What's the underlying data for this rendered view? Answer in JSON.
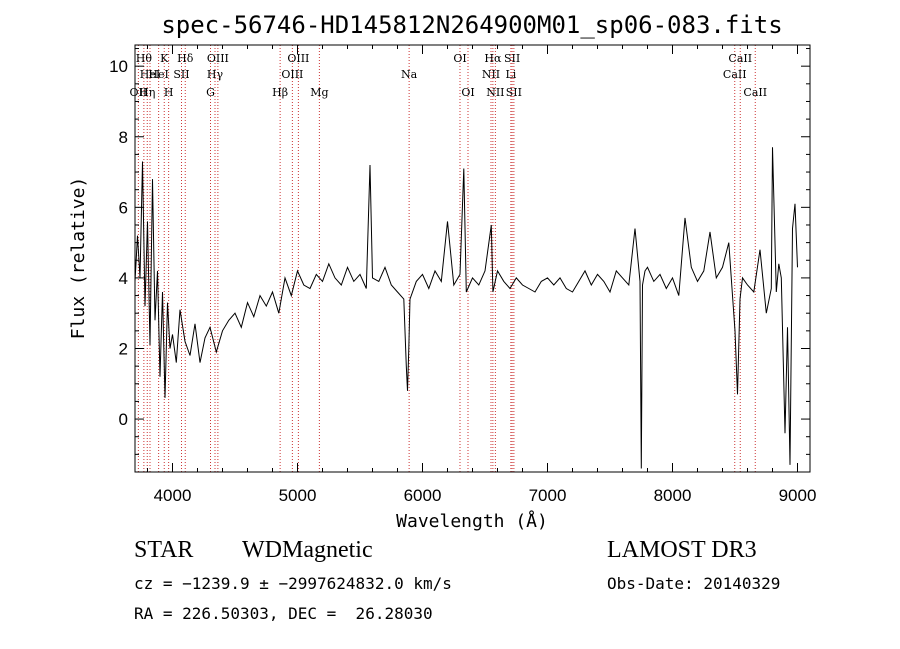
{
  "chart_data": {
    "type": "line",
    "title": "spec-56746-HD145812N264900M01_sp06-083.fits",
    "xlabel": "Wavelength (Å)",
    "ylabel": "Flux (relative)",
    "xlim": [
      3700,
      9100
    ],
    "ylim": [
      -1.5,
      10.6
    ],
    "xticks": [
      4000,
      5000,
      6000,
      7000,
      8000,
      9000
    ],
    "yticks": [
      0,
      2,
      4,
      6,
      8,
      10
    ],
    "line_color": "#000000",
    "marker_color": "#cc3333",
    "series": [
      {
        "x": [
          3700,
          3720,
          3740,
          3760,
          3780,
          3800,
          3820,
          3840,
          3860,
          3880,
          3900,
          3920,
          3940,
          3960,
          3980,
          4000,
          4030,
          4060,
          4100,
          4140,
          4180,
          4220,
          4260,
          4300,
          4350,
          4400,
          4450,
          4500,
          4550,
          4600,
          4650,
          4700,
          4750,
          4800,
          4850,
          4900,
          4950,
          5000,
          5050,
          5100,
          5150,
          5200,
          5250,
          5300,
          5350,
          5400,
          5450,
          5500,
          5550,
          5580,
          5600,
          5650,
          5700,
          5750,
          5800,
          5850,
          5870,
          5880,
          5890,
          5900,
          5950,
          6000,
          6050,
          6100,
          6150,
          6200,
          6250,
          6300,
          6330,
          6350,
          6400,
          6450,
          6500,
          6550,
          6563,
          6600,
          6650,
          6700,
          6750,
          6800,
          6850,
          6900,
          6950,
          7000,
          7050,
          7100,
          7150,
          7200,
          7250,
          7300,
          7350,
          7400,
          7450,
          7500,
          7550,
          7600,
          7650,
          7700,
          7740,
          7750,
          7760,
          7780,
          7800,
          7850,
          7900,
          7950,
          8000,
          8050,
          8100,
          8150,
          8200,
          8250,
          8300,
          8350,
          8400,
          8450,
          8480,
          8500,
          8520,
          8540,
          8560,
          8600,
          8650,
          8700,
          8750,
          8790,
          8800,
          8830,
          8850,
          8870,
          8900,
          8920,
          8940,
          8960,
          8980,
          9000
        ],
        "y": [
          3.9,
          5.2,
          4.0,
          7.3,
          3.2,
          5.6,
          2.1,
          6.8,
          2.8,
          4.2,
          1.2,
          3.6,
          0.6,
          3.3,
          2.0,
          2.4,
          1.6,
          3.1,
          2.2,
          1.8,
          2.7,
          1.6,
          2.3,
          2.6,
          1.9,
          2.5,
          2.8,
          3.0,
          2.6,
          3.3,
          2.9,
          3.5,
          3.2,
          3.6,
          3.0,
          4.0,
          3.5,
          4.2,
          3.8,
          3.7,
          4.1,
          3.9,
          4.4,
          4.0,
          3.8,
          4.3,
          3.9,
          4.1,
          3.7,
          7.2,
          4.0,
          3.9,
          4.3,
          3.8,
          3.6,
          3.4,
          1.5,
          0.8,
          2.0,
          3.4,
          3.9,
          4.1,
          3.7,
          4.2,
          3.9,
          5.6,
          3.8,
          4.1,
          7.1,
          3.6,
          4.0,
          3.8,
          4.2,
          5.5,
          3.6,
          4.2,
          3.9,
          3.7,
          4.0,
          3.8,
          3.7,
          3.6,
          3.9,
          4.0,
          3.8,
          4.0,
          3.7,
          3.6,
          3.9,
          4.2,
          3.8,
          4.1,
          3.9,
          3.6,
          4.2,
          4.0,
          3.8,
          5.4,
          3.9,
          -1.4,
          3.8,
          4.2,
          4.3,
          3.9,
          4.1,
          3.7,
          4.0,
          3.5,
          5.7,
          4.3,
          3.9,
          4.2,
          5.3,
          4.0,
          4.3,
          5.0,
          3.5,
          2.5,
          0.7,
          3.4,
          4.0,
          3.8,
          3.6,
          4.8,
          3.0,
          3.7,
          7.7,
          3.6,
          4.4,
          4.0,
          -0.4,
          2.6,
          -1.3,
          5.4,
          6.1,
          4.3
        ]
      }
    ],
    "lines": [
      {
        "x": 3727,
        "labels": [
          "OII"
        ],
        "rows": [
          3
        ]
      },
      {
        "x": 3771,
        "labels": [
          "Hθ"
        ],
        "rows": [
          1
        ]
      },
      {
        "x": 3798,
        "labels": [
          "Hη"
        ],
        "rows": [
          3
        ]
      },
      {
        "x": 3820,
        "labels": [
          "HeI"
        ],
        "rows": [
          2
        ]
      },
      {
        "x": 3889,
        "labels": [
          "HeI"
        ],
        "rows": [
          2
        ]
      },
      {
        "x": 3934,
        "labels": [
          "K"
        ],
        "rows": [
          1
        ]
      },
      {
        "x": 3969,
        "labels": [
          "H"
        ],
        "rows": [
          3
        ]
      },
      {
        "x": 4072,
        "labels": [
          "SII"
        ],
        "rows": [
          2
        ]
      },
      {
        "x": 4102,
        "labels": [
          "Hδ"
        ],
        "rows": [
          1
        ]
      },
      {
        "x": 4304,
        "labels": [
          "G"
        ],
        "rows": [
          3
        ]
      },
      {
        "x": 4340,
        "labels": [
          "Hγ"
        ],
        "rows": [
          2
        ]
      },
      {
        "x": 4363,
        "labels": [
          "OIII"
        ],
        "rows": [
          1
        ]
      },
      {
        "x": 4861,
        "labels": [
          "Hβ"
        ],
        "rows": [
          3
        ]
      },
      {
        "x": 4959,
        "labels": [
          "OIII"
        ],
        "rows": [
          2
        ]
      },
      {
        "x": 5007,
        "labels": [
          "OIII"
        ],
        "rows": [
          1
        ]
      },
      {
        "x": 5175,
        "labels": [
          "Mg"
        ],
        "rows": [
          3
        ]
      },
      {
        "x": 5893,
        "labels": [
          "Na"
        ],
        "rows": [
          2
        ]
      },
      {
        "x": 6300,
        "labels": [
          "OI"
        ],
        "rows": [
          1
        ]
      },
      {
        "x": 6364,
        "labels": [
          "OI"
        ],
        "rows": [
          3
        ]
      },
      {
        "x": 6548,
        "labels": [
          "NII"
        ],
        "rows": [
          2
        ]
      },
      {
        "x": 6563,
        "labels": [
          "Hα"
        ],
        "rows": [
          1
        ]
      },
      {
        "x": 6583,
        "labels": [
          "NII"
        ],
        "rows": [
          3
        ]
      },
      {
        "x": 6707,
        "labels": [
          "Li"
        ],
        "rows": [
          2
        ]
      },
      {
        "x": 6717,
        "labels": [
          "SII"
        ],
        "rows": [
          1
        ]
      },
      {
        "x": 6731,
        "labels": [
          "SII"
        ],
        "rows": [
          3
        ]
      },
      {
        "x": 8498,
        "labels": [
          "CaII"
        ],
        "rows": [
          2
        ]
      },
      {
        "x": 8542,
        "labels": [
          "CaII"
        ],
        "rows": [
          1
        ]
      },
      {
        "x": 8662,
        "labels": [
          "CaII"
        ],
        "rows": [
          3
        ]
      }
    ]
  },
  "info": {
    "class": "STAR",
    "subclass": "WDMagnetic",
    "survey": "LAMOST DR3",
    "cz": "cz = −1239.9 ± −2997624832.0 km/s",
    "obs_date": "Obs-Date: 20140329",
    "coords": "RA = 226.50303, DEC =  26.28030"
  }
}
